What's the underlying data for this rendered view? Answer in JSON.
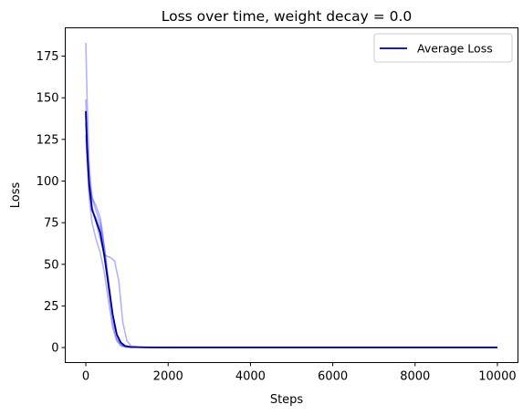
{
  "chart_data": {
    "type": "line",
    "title": "Loss over time, weight decay = 0.0",
    "xlabel": "Steps",
    "ylabel": "Loss",
    "xlim": [
      -500,
      10500
    ],
    "ylim": [
      -9,
      192
    ],
    "xticks": [
      0,
      2000,
      4000,
      6000,
      8000,
      10000
    ],
    "xtick_labels": [
      "0",
      "2000",
      "4000",
      "6000",
      "8000",
      "10000"
    ],
    "yticks": [
      0,
      25,
      50,
      75,
      100,
      125,
      150,
      175
    ],
    "ytick_labels": [
      "0",
      "25",
      "50",
      "75",
      "100",
      "125",
      "150",
      "175"
    ],
    "grid": false,
    "legend": {
      "position": "upper-right",
      "entries": [
        "Average Loss"
      ]
    },
    "colors": {
      "average": "#00008b",
      "runs": "#0000ff"
    },
    "run_series": [
      {
        "x": [
          0,
          30,
          80,
          150,
          250,
          350,
          450,
          550,
          650,
          750,
          850,
          950,
          1100,
          1500,
          3000,
          10000
        ],
        "y": [
          183,
          150,
          110,
          90,
          82,
          75,
          60,
          40,
          20,
          8,
          3,
          1,
          0.3,
          0.1,
          0.1,
          0.1
        ]
      },
      {
        "x": [
          0,
          30,
          80,
          150,
          250,
          350,
          450,
          500,
          600,
          700,
          800,
          900,
          1000,
          1100,
          1300,
          2000,
          10000
        ],
        "y": [
          149,
          125,
          100,
          85,
          75,
          65,
          56,
          55,
          54,
          52,
          40,
          15,
          4,
          1,
          0.3,
          0.1,
          0.1
        ]
      },
      {
        "x": [
          0,
          30,
          80,
          150,
          250,
          350,
          400,
          500,
          600,
          700,
          800,
          900,
          1100,
          2000,
          10000
        ],
        "y": [
          135,
          120,
          100,
          90,
          85,
          78,
          70,
          50,
          30,
          12,
          4,
          1,
          0.3,
          0.1,
          0.1
        ]
      },
      {
        "x": [
          0,
          30,
          80,
          150,
          250,
          350,
          450,
          550,
          650,
          750,
          850,
          1000,
          2000,
          10000
        ],
        "y": [
          128,
          110,
          90,
          75,
          65,
          57,
          45,
          28,
          12,
          4,
          1,
          0.2,
          0.1,
          0.1
        ]
      },
      {
        "x": [
          0,
          30,
          80,
          150,
          250,
          350,
          450,
          550,
          650,
          750,
          850,
          1000,
          2000,
          10000
        ],
        "y": [
          140,
          118,
          95,
          82,
          78,
          72,
          55,
          35,
          15,
          5,
          1.5,
          0.3,
          0.1,
          0.1
        ]
      }
    ],
    "series": [
      {
        "name": "Average Loss",
        "x": [
          0,
          30,
          80,
          150,
          250,
          350,
          450,
          550,
          650,
          750,
          850,
          950,
          1100,
          1500,
          3000,
          10000
        ],
        "y": [
          142,
          120,
          98,
          83,
          76,
          69,
          55,
          38,
          20,
          8,
          3,
          1,
          0.3,
          0.1,
          0.1,
          0.1
        ]
      }
    ]
  }
}
